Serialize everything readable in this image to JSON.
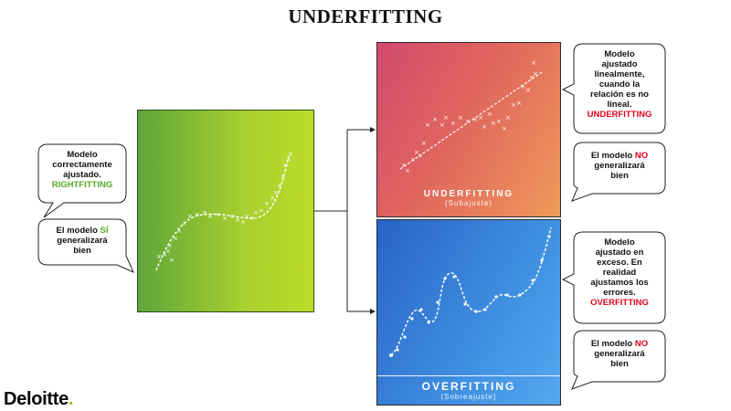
{
  "title": "UNDERFITTING",
  "bubbles": {
    "right_fit": {
      "lines": [
        "Modelo",
        "correctamente",
        "ajustado."
      ],
      "highlight": "RIGHTFITTING",
      "highlight_color": "#5aa82a"
    },
    "right_gen": {
      "lines": [
        "El modelo"
      ],
      "highlight": "SÍ",
      "after": [
        "generalizará",
        "bien"
      ],
      "highlight_color": "#5aa82a"
    },
    "under_fit": {
      "lines": [
        "Modelo",
        "ajustado",
        "linealmente,",
        "cuando la",
        "relación es no",
        "lineal."
      ],
      "highlight": "UNDERFITTING",
      "highlight_color": "#e0001b"
    },
    "under_gen": {
      "lines": [
        "El modelo"
      ],
      "highlight": "NO",
      "after": [
        "generalizará",
        "bien"
      ],
      "highlight_color": "#e0001b"
    },
    "over_fit": {
      "lines": [
        "Modelo",
        "ajustado en",
        "exceso. En",
        "realidad",
        "ajustamos los",
        "errores."
      ],
      "highlight": "OVERFITTING",
      "highlight_color": "#e0001b"
    },
    "over_gen": {
      "lines": [
        "El modelo"
      ],
      "highlight": "NO",
      "after": [
        "generalizará",
        "bien"
      ],
      "highlight_color": "#e0001b"
    }
  },
  "panels": {
    "under": {
      "label": "UNDERFITTING",
      "sublabel": "(Subajuste)",
      "colors": [
        "#d24a6e",
        "#ee9a5a"
      ]
    },
    "over": {
      "label": "OVERFITTING",
      "sublabel": "(Sobreajuste)",
      "colors": [
        "#2a63c7",
        "#55a8f0"
      ]
    },
    "right": {
      "colors": [
        "#5fa63a",
        "#bfdc2a"
      ]
    }
  },
  "logo": {
    "text": "Deloitte",
    "dot": ".",
    "dot_color": "#86bc25"
  }
}
